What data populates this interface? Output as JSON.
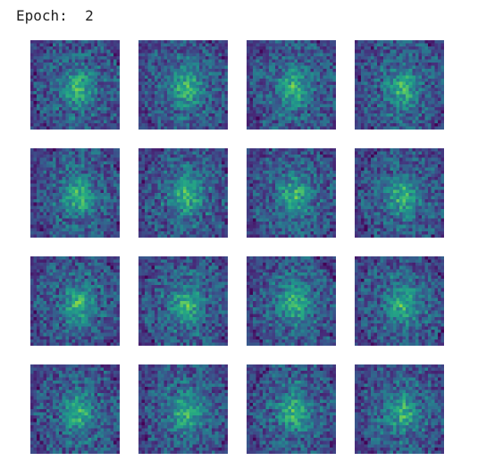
{
  "header": {
    "label": "Epoch:",
    "value": "2"
  },
  "figure": {
    "rows": 4,
    "cols": 4,
    "tile_pixels": 28,
    "colormap": "viridis",
    "colors": {
      "low": "#440154",
      "mid_low": "#3b528b",
      "mid": "#21918c",
      "mid_high": "#5ec962",
      "high": "#fde725"
    }
  }
}
